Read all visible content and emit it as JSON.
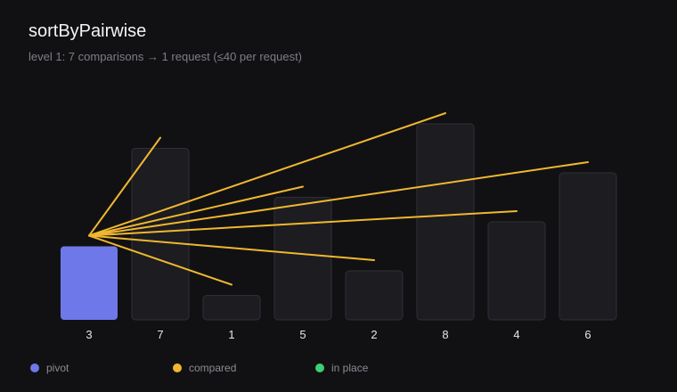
{
  "header": {
    "title": "sortByPairwise",
    "subtitle": "level 1: 7 comparisons → 1 request (≤40 per request)"
  },
  "colors": {
    "background": "#111114",
    "bar_fill": "#1c1c21",
    "bar_stroke": "#2f2f36",
    "pivot": "#6f78e8",
    "compared": "#f0b72f",
    "in_place": "#3ecf6e",
    "label": "#e6e6ea"
  },
  "bars": [
    {
      "label": "3",
      "value": 3,
      "state": "pivot"
    },
    {
      "label": "7",
      "value": 7,
      "state": "idle"
    },
    {
      "label": "1",
      "value": 1,
      "state": "idle"
    },
    {
      "label": "5",
      "value": 5,
      "state": "idle"
    },
    {
      "label": "2",
      "value": 2,
      "state": "idle"
    },
    {
      "label": "8",
      "value": 8,
      "state": "idle"
    },
    {
      "label": "4",
      "value": 4,
      "state": "idle"
    },
    {
      "label": "6",
      "value": 6,
      "state": "idle"
    }
  ],
  "comparisons": {
    "pivot_index": 0,
    "targets": [
      1,
      2,
      3,
      4,
      5,
      6,
      7
    ]
  },
  "legend": [
    {
      "label": "pivot",
      "color": "#6f78e8"
    },
    {
      "label": "compared",
      "color": "#f0b72f"
    },
    {
      "label": "in place",
      "color": "#3ecf6e"
    }
  ]
}
